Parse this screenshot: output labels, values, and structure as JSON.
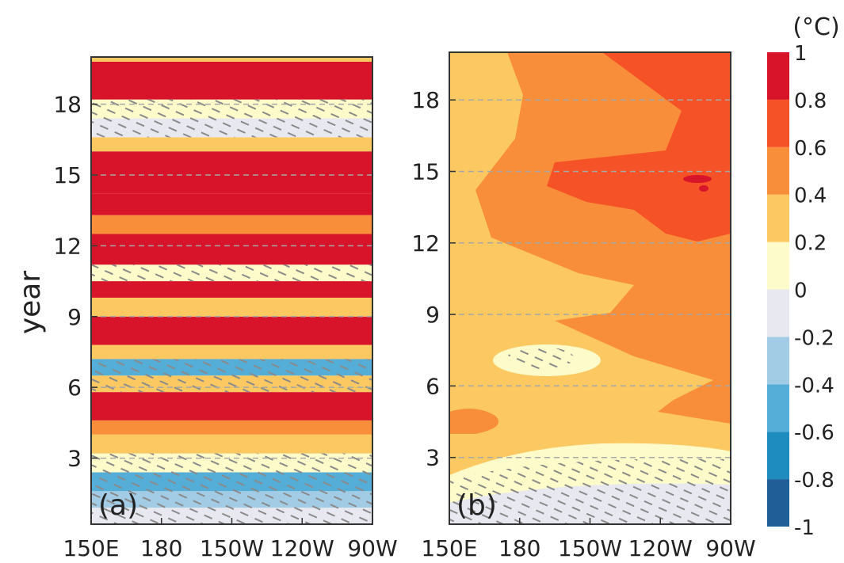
{
  "chart_data": [
    {
      "type": "heatmap",
      "panel_label": "(a)",
      "xlabel": "",
      "ylabel": "year",
      "x_ticks": [
        "150E",
        "180",
        "150W",
        "120W",
        "90W"
      ],
      "y_ticks": [
        3,
        6,
        9,
        12,
        15,
        18
      ],
      "ylim": [
        0.2,
        20
      ],
      "x_range": [
        "150E",
        "90W"
      ],
      "hatching": "diagonal hatching marks regions not statistically significant",
      "bands": [
        {
          "y": [
            0.2,
            0.9
          ],
          "value": -0.1
        },
        {
          "y": [
            0.9,
            1.6
          ],
          "value": -0.3
        },
        {
          "y": [
            1.6,
            2.4
          ],
          "value": -0.5
        },
        {
          "y": [
            2.4,
            3.2
          ],
          "value": 0.1
        },
        {
          "y": [
            3.2,
            4.0
          ],
          "value": 0.3
        },
        {
          "y": [
            4.0,
            4.6
          ],
          "value": 0.5
        },
        {
          "y": [
            4.6,
            5.8
          ],
          "value": 0.85
        },
        {
          "y": [
            5.8,
            6.5
          ],
          "value": 0.3
        },
        {
          "y": [
            6.5,
            7.2
          ],
          "value": -0.5
        },
        {
          "y": [
            7.2,
            7.8
          ],
          "value": 0.3
        },
        {
          "y": [
            7.8,
            9.0
          ],
          "value": 0.85
        },
        {
          "y": [
            9.0,
            9.8
          ],
          "value": 0.3
        },
        {
          "y": [
            9.8,
            10.5
          ],
          "value": 0.85
        },
        {
          "y": [
            10.5,
            11.2
          ],
          "value": 0.1
        },
        {
          "y": [
            11.2,
            12.5
          ],
          "value": 0.85
        },
        {
          "y": [
            12.5,
            13.3
          ],
          "value": 0.5
        },
        {
          "y": [
            13.3,
            14.2
          ],
          "value": 0.85
        },
        {
          "y": [
            14.2,
            16.0
          ],
          "value": 0.9
        },
        {
          "y": [
            16.0,
            16.6
          ],
          "value": 0.3
        },
        {
          "y": [
            16.6,
            17.4
          ],
          "value": -0.1
        },
        {
          "y": [
            17.4,
            18.2
          ],
          "value": 0.1
        },
        {
          "y": [
            18.2,
            19.8
          ],
          "value": 0.85
        },
        {
          "y": [
            19.8,
            20.0
          ],
          "value": 0.3
        }
      ]
    },
    {
      "type": "heatmap",
      "panel_label": "(b)",
      "xlabel": "",
      "ylabel": "",
      "x_ticks": [
        "150E",
        "180",
        "150W",
        "120W",
        "90W"
      ],
      "y_ticks": [
        3,
        6,
        9,
        12,
        15,
        18
      ],
      "ylim": [
        0.2,
        20
      ],
      "x_range": [
        "150E",
        "90W"
      ],
      "hatching": "diagonal hatching marks regions not statistically significant",
      "regions": [
        {
          "area": "years 0.2-1.6, all longitudes",
          "value": -0.1
        },
        {
          "area": "years 1.6-3.5, all longitudes",
          "value": 0.1
        },
        {
          "area": "years 3.5-20, west of 180",
          "value": 0.3
        },
        {
          "area": "around year 7, 175E-125W",
          "value": 0.1
        },
        {
          "area": "years 9-20, east of 150W",
          "value": 0.5
        },
        {
          "area": "years 12-20, east of 165W",
          "value": 0.7
        },
        {
          "area": "around year 15, 95W-105W",
          "value": 0.9
        }
      ]
    }
  ],
  "colorbar": {
    "unit": "(°C)",
    "levels": [
      -1,
      -0.8,
      -0.6,
      -0.4,
      -0.2,
      0,
      0.2,
      0.4,
      0.6,
      0.8,
      1
    ],
    "level_labels": [
      "-1",
      "-0.8",
      "-0.6",
      "-0.4",
      "-0.2",
      "0",
      "0.2",
      "0.4",
      "0.6",
      "0.8",
      "1"
    ],
    "colors": [
      "#1f5e96",
      "#1f8cc0",
      "#54aed8",
      "#a2cbe5",
      "#e8e9f0",
      "#fcfbc9",
      "#fbc862",
      "#f98e3a",
      "#f55227",
      "#d7142a"
    ]
  }
}
